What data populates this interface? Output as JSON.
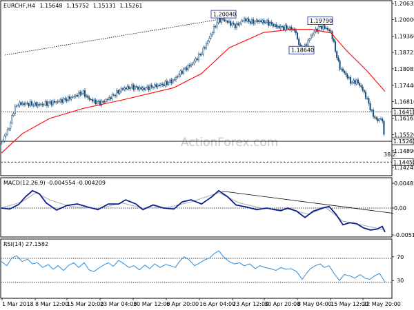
{
  "chart_data": [
    {
      "type": "candlestick",
      "panel": "price",
      "symbol": "EURCHF,H4",
      "ohlc_header": [
        "1.15648",
        "1.15752",
        "1.15131",
        "1.15261"
      ],
      "title": "EURCHF,H4  1.15648 1.15752 1.15131 1.15261",
      "y_ticks": [
        "1.20635",
        "1.20000",
        "1.19360",
        "1.18725",
        "1.18085",
        "1.17440",
        "1.16810",
        "1.16165",
        "1.15520",
        "1.14890",
        "1.14245"
      ],
      "ylim": [
        1.1392,
        1.2074
      ],
      "close_path": [
        [
          0,
          1.152
        ],
        [
          12,
          1.1585
        ],
        [
          18,
          1.1648
        ],
        [
          24,
          1.1672
        ],
        [
          40,
          1.1672
        ],
        [
          55,
          1.1668
        ],
        [
          80,
          1.168
        ],
        [
          95,
          1.169
        ],
        [
          105,
          1.17
        ],
        [
          118,
          1.1718
        ],
        [
          125,
          1.1695
        ],
        [
          135,
          1.168
        ],
        [
          145,
          1.1675
        ],
        [
          160,
          1.17
        ],
        [
          175,
          1.173
        ],
        [
          190,
          1.1738
        ],
        [
          205,
          1.173
        ],
        [
          220,
          1.174
        ],
        [
          235,
          1.1748
        ],
        [
          250,
          1.1765
        ],
        [
          262,
          1.18
        ],
        [
          275,
          1.1825
        ],
        [
          290,
          1.187
        ],
        [
          300,
          1.192
        ],
        [
          306,
          1.1955
        ],
        [
          314,
          1.1998
        ],
        [
          322,
          1.2
        ],
        [
          332,
          1.1985
        ],
        [
          340,
          1.1975
        ],
        [
          352,
          1.2002
        ],
        [
          362,
          1.199
        ],
        [
          372,
          1.1995
        ],
        [
          385,
          1.199
        ],
        [
          400,
          1.1972
        ],
        [
          415,
          1.1968
        ],
        [
          425,
          1.196
        ],
        [
          435,
          1.1875
        ],
        [
          443,
          1.191
        ],
        [
          452,
          1.195
        ],
        [
          462,
          1.1972
        ],
        [
          470,
          1.1968
        ],
        [
          478,
          1.195
        ],
        [
          484,
          1.188
        ],
        [
          490,
          1.1815
        ],
        [
          498,
          1.179
        ],
        [
          507,
          1.1755
        ],
        [
          515,
          1.176
        ],
        [
          522,
          1.1735
        ],
        [
          530,
          1.169
        ],
        [
          538,
          1.163
        ],
        [
          545,
          1.1605
        ],
        [
          551,
          1.162
        ],
        [
          556,
          1.1526
        ]
      ],
      "moving_average": [
        [
          0,
          1.148
        ],
        [
          30,
          1.1555
        ],
        [
          70,
          1.1615
        ],
        [
          120,
          1.1655
        ],
        [
          180,
          1.169
        ],
        [
          250,
          1.1735
        ],
        [
          290,
          1.179
        ],
        [
          330,
          1.189
        ],
        [
          380,
          1.195
        ],
        [
          420,
          1.1962
        ],
        [
          450,
          1.1962
        ],
        [
          478,
          1.1948
        ],
        [
          500,
          1.188
        ],
        [
          530,
          1.18
        ],
        [
          556,
          1.172
        ]
      ],
      "trendline": [
        [
          5,
          1.1862
        ],
        [
          322,
          1.2004
        ]
      ],
      "levels": [
        {
          "value": 1.1641,
          "label": "1.16410",
          "style": "dotted"
        },
        {
          "value": 1.15261,
          "label": "1.15261",
          "style": "solid"
        },
        {
          "value": 1.1445,
          "label": "1.14450",
          "style": "dashed"
        }
      ],
      "annotations": [
        {
          "text": "1.20040",
          "x": 322,
          "y": 1.2004
        },
        {
          "text": "1.19790",
          "x": 462,
          "y": 1.1979
        },
        {
          "text": "1.18640",
          "x": 435,
          "y": 1.1864
        },
        {
          "text": "38.2",
          "x": 556,
          "y": 1.1475
        }
      ],
      "colors": {
        "candles": "#1a4d7a",
        "moving_average": "#ff0000",
        "trendline": "#000000"
      },
      "watermark": "ActionForex.com"
    },
    {
      "type": "line",
      "panel": "macd",
      "title": "MACD(12,26,9) -0.004554 -0.004209",
      "y_ticks": [
        "0.004851",
        "0.00",
        "-0.005132"
      ],
      "ylim": [
        -0.005132,
        0.004851
      ],
      "macd": [
        [
          0,
          0.0
        ],
        [
          12,
          -0.0002
        ],
        [
          25,
          0.0007
        ],
        [
          35,
          0.0022
        ],
        [
          45,
          0.0034
        ],
        [
          55,
          0.0028
        ],
        [
          65,
          0.001
        ],
        [
          80,
          -0.0004
        ],
        [
          95,
          0.0005
        ],
        [
          110,
          0.0008
        ],
        [
          125,
          0.0002
        ],
        [
          140,
          -0.0003
        ],
        [
          155,
          0.0008
        ],
        [
          170,
          0.0008
        ],
        [
          180,
          0.0016
        ],
        [
          195,
          0.0008
        ],
        [
          205,
          -0.0003
        ],
        [
          220,
          0.0006
        ],
        [
          235,
          0.0
        ],
        [
          250,
          -0.0002
        ],
        [
          262,
          0.0012
        ],
        [
          275,
          0.0016
        ],
        [
          290,
          0.0008
        ],
        [
          305,
          0.0022
        ],
        [
          315,
          0.0034
        ],
        [
          328,
          0.0022
        ],
        [
          340,
          0.0006
        ],
        [
          355,
          0.0002
        ],
        [
          370,
          -0.0003
        ],
        [
          385,
          0.0
        ],
        [
          395,
          -0.0003
        ],
        [
          405,
          -0.0005
        ],
        [
          415,
          0.0
        ],
        [
          428,
          -0.0006
        ],
        [
          440,
          -0.0018
        ],
        [
          452,
          -0.0006
        ],
        [
          465,
          0.0
        ],
        [
          475,
          0.0003
        ],
        [
          485,
          -0.0012
        ],
        [
          495,
          -0.0032
        ],
        [
          505,
          -0.0028
        ],
        [
          515,
          -0.003
        ],
        [
          525,
          -0.0038
        ],
        [
          535,
          -0.0042
        ],
        [
          545,
          -0.004
        ],
        [
          552,
          -0.0035
        ],
        [
          556,
          -0.0046
        ]
      ],
      "signal": [
        [
          0,
          0.0
        ],
        [
          30,
          0.0012
        ],
        [
          50,
          0.003
        ],
        [
          70,
          0.0016
        ],
        [
          100,
          0.0003
        ],
        [
          140,
          -0.0001
        ],
        [
          175,
          0.001
        ],
        [
          205,
          0.0
        ],
        [
          240,
          0.0001
        ],
        [
          275,
          0.0012
        ],
        [
          315,
          0.003
        ],
        [
          345,
          0.001
        ],
        [
          380,
          -0.0001
        ],
        [
          420,
          -0.0003
        ],
        [
          445,
          -0.0012
        ],
        [
          470,
          0.0001
        ],
        [
          495,
          -0.0025
        ],
        [
          525,
          -0.0033
        ],
        [
          556,
          -0.0042
        ]
      ],
      "trendline": [
        [
          320,
          0.0033
        ],
        [
          568,
          -0.001
        ]
      ],
      "colors": {
        "macd": "#0b1f8f",
        "signal": "#aaaaaa"
      }
    },
    {
      "type": "line",
      "panel": "rsi",
      "title": "RSI(14) 27.1582",
      "y_ticks": [
        "70",
        "30"
      ],
      "ylim": [
        0,
        100
      ],
      "rsi": [
        [
          0,
          62
        ],
        [
          8,
          55
        ],
        [
          15,
          68
        ],
        [
          22,
          72
        ],
        [
          30,
          62
        ],
        [
          38,
          66
        ],
        [
          45,
          58
        ],
        [
          52,
          60
        ],
        [
          60,
          52
        ],
        [
          68,
          57
        ],
        [
          75,
          49
        ],
        [
          82,
          55
        ],
        [
          90,
          47
        ],
        [
          98,
          56
        ],
        [
          105,
          60
        ],
        [
          112,
          52
        ],
        [
          120,
          60
        ],
        [
          127,
          48
        ],
        [
          134,
          45
        ],
        [
          140,
          50
        ],
        [
          148,
          56
        ],
        [
          155,
          60
        ],
        [
          162,
          54
        ],
        [
          170,
          64
        ],
        [
          178,
          58
        ],
        [
          185,
          52
        ],
        [
          192,
          55
        ],
        [
          200,
          48
        ],
        [
          208,
          56
        ],
        [
          215,
          50
        ],
        [
          222,
          58
        ],
        [
          230,
          52
        ],
        [
          238,
          57
        ],
        [
          245,
          55
        ],
        [
          252,
          52
        ],
        [
          258,
          62
        ],
        [
          265,
          70
        ],
        [
          272,
          65
        ],
        [
          280,
          55
        ],
        [
          288,
          60
        ],
        [
          295,
          65
        ],
        [
          302,
          68
        ],
        [
          308,
          75
        ],
        [
          315,
          80
        ],
        [
          322,
          70
        ],
        [
          330,
          62
        ],
        [
          338,
          58
        ],
        [
          345,
          60
        ],
        [
          352,
          55
        ],
        [
          360,
          58
        ],
        [
          368,
          50
        ],
        [
          375,
          55
        ],
        [
          382,
          52
        ],
        [
          390,
          50
        ],
        [
          398,
          47
        ],
        [
          405,
          52
        ],
        [
          412,
          49
        ],
        [
          420,
          50
        ],
        [
          428,
          45
        ],
        [
          436,
          32
        ],
        [
          442,
          42
        ],
        [
          448,
          50
        ],
        [
          455,
          55
        ],
        [
          462,
          58
        ],
        [
          468,
          52
        ],
        [
          475,
          55
        ],
        [
          482,
          42
        ],
        [
          490,
          30
        ],
        [
          497,
          40
        ],
        [
          505,
          38
        ],
        [
          512,
          34
        ],
        [
          520,
          40
        ],
        [
          527,
          34
        ],
        [
          534,
          32
        ],
        [
          541,
          38
        ],
        [
          548,
          42
        ],
        [
          553,
          33
        ],
        [
          556,
          27
        ]
      ],
      "colors": {
        "rsi": "#2e8ad4"
      }
    }
  ],
  "x_ticks": [
    "1 Mar 2018",
    "8 Mar 12:00",
    "15 Mar 20:00",
    "23 Mar 04:00",
    "30 Mar 12:00",
    "6 Apr 20:00",
    "16 Apr 04:00",
    "23 Apr 12:00",
    "30 Apr 20:00",
    "8 May 04:00",
    "15 May 12:00",
    "22 May 20:00"
  ]
}
